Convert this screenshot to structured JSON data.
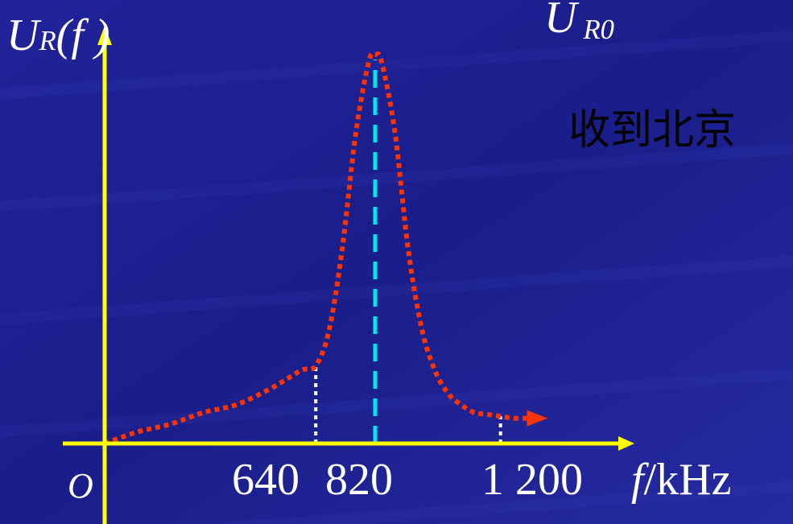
{
  "colors": {
    "background": "#1c1f8e",
    "axis": "#ffff00",
    "curve": "#ff3300",
    "peak_line": "#00e5e5",
    "ref_line": "#ffffff",
    "text": "#ffffff",
    "caption": "#ffff00"
  },
  "chart_data": {
    "type": "line",
    "ylabel": {
      "main": "U",
      "sub": "R",
      "arg": "(f )"
    },
    "peak_label": {
      "main": "U",
      "sub": "R0"
    },
    "origin_label": "O",
    "xlabel": {
      "var": "f",
      "unit": "/kHz"
    },
    "x_ticks": [
      "640",
      "820",
      "1 200"
    ],
    "caption": "收到北京",
    "xlim": [
      0,
      1400
    ],
    "ylim": [
      0,
      1.05
    ],
    "peak_x": 820,
    "markers": [
      {
        "x": 640,
        "y": 0.2
      },
      {
        "x": 1200,
        "y": 0.07
      }
    ],
    "series": [
      {
        "x": [
          0,
          100,
          200,
          300,
          400,
          500,
          560,
          600,
          640,
          680,
          720,
          760,
          800,
          820,
          840,
          880,
          920,
          960,
          1000,
          1040,
          1080,
          1120,
          1160,
          1200,
          1240,
          1280
        ],
        "y": [
          0.0,
          0.03,
          0.05,
          0.08,
          0.1,
          0.14,
          0.17,
          0.19,
          0.2,
          0.29,
          0.5,
          0.79,
          0.98,
          1.0,
          0.98,
          0.8,
          0.5,
          0.3,
          0.19,
          0.13,
          0.1,
          0.08,
          0.075,
          0.07,
          0.065,
          0.065
        ]
      }
    ]
  }
}
